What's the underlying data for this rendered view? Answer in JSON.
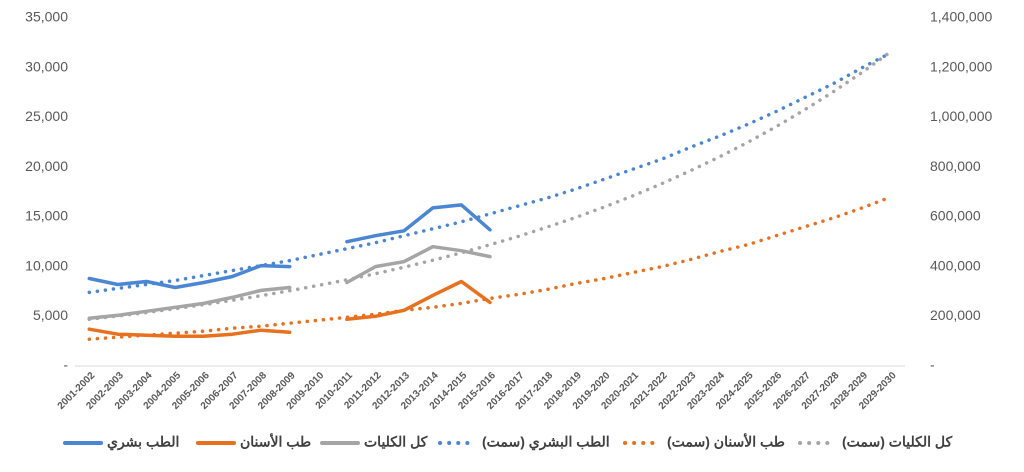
{
  "chart_data": {
    "type": "line",
    "categories": [
      "2001-2002",
      "2002-2003",
      "2003-2004",
      "2004-2005",
      "2005-2006",
      "2006-2007",
      "2007-2008",
      "2008-2009",
      "2009-2010",
      "2010-2011",
      "2011-2012",
      "2012-2013",
      "2013-2014",
      "2014-2015",
      "2015-2016",
      "2016-2017",
      "2017-2018",
      "2018-2019",
      "2019-2020",
      "2020-2021",
      "2021-2022",
      "2022-2023",
      "2023-2024",
      "2024-2025",
      "2025-2026",
      "2026-2027",
      "2027-2028",
      "2028-2029",
      "2029-2030"
    ],
    "ylim": [
      0,
      35000
    ],
    "yticks": [
      {
        "value": 0,
        "label": "-"
      },
      {
        "value": 5000,
        "label": "5,000"
      },
      {
        "value": 10000,
        "label": "10,000"
      },
      {
        "value": 15000,
        "label": "15,000"
      },
      {
        "value": 20000,
        "label": "20,000"
      },
      {
        "value": 25000,
        "label": "25,000"
      },
      {
        "value": 30000,
        "label": "30,000"
      },
      {
        "value": 35000,
        "label": "35,000"
      }
    ],
    "y2lim": [
      0,
      1400000
    ],
    "y2ticks": [
      {
        "value": 0,
        "label": "-"
      },
      {
        "value": 200000,
        "label": "200,000"
      },
      {
        "value": 400000,
        "label": "400,000"
      },
      {
        "value": 600000,
        "label": "600,000"
      },
      {
        "value": 800000,
        "label": "800,000"
      },
      {
        "value": 1000000,
        "label": "1,000,000"
      },
      {
        "value": 1200000,
        "label": "1,200,000"
      },
      {
        "value": 1400000,
        "label": "1,400,000"
      }
    ],
    "grid": false,
    "legend": "bottom",
    "series": [
      {
        "name": "الطب بشري",
        "color": "#4a86d4",
        "style": "solid",
        "values": [
          8800,
          8200,
          8500,
          7900,
          8400,
          9000,
          10100,
          10000,
          null,
          12500,
          13100,
          13600,
          15900,
          16200,
          13700,
          null,
          null,
          null,
          null,
          null,
          null,
          null,
          null,
          null,
          null,
          null,
          null,
          null,
          null
        ]
      },
      {
        "name": "طب الأسنان",
        "color": "#e8711f",
        "style": "solid",
        "values": [
          3700,
          3200,
          3100,
          3000,
          3000,
          3200,
          3600,
          3400,
          null,
          4700,
          5000,
          5600,
          7100,
          8500,
          6400,
          null,
          null,
          null,
          null,
          null,
          null,
          null,
          null,
          null,
          null,
          null,
          null,
          null,
          null
        ]
      },
      {
        "name": "كل الكليات",
        "color": "#a5a5a5",
        "style": "solid",
        "axis": "y2",
        "values": [
          192000,
          204000,
          220000,
          236000,
          252000,
          276000,
          304000,
          316000,
          null,
          336000,
          400000,
          420000,
          480000,
          464000,
          440000,
          null,
          null,
          null,
          null,
          null,
          null,
          null,
          null,
          null,
          null,
          null,
          null,
          null,
          null
        ]
      },
      {
        "name": "الطب البشري (سمت)",
        "color": "#4a86d4",
        "style": "dotted",
        "values": [
          7400,
          7800,
          8200,
          8600,
          9100,
          9600,
          10100,
          10600,
          11200,
          11800,
          12400,
          13100,
          13800,
          14500,
          15300,
          16100,
          16900,
          17800,
          18800,
          19800,
          20800,
          22000,
          23100,
          24300,
          25600,
          27000,
          28400,
          30000,
          31500
        ]
      },
      {
        "name": "طب الأسنان (سمت)",
        "color": "#e8711f",
        "style": "dotted",
        "values": [
          2700,
          2900,
          3100,
          3300,
          3500,
          3800,
          4000,
          4300,
          4600,
          4900,
          5200,
          5600,
          5900,
          6300,
          6800,
          7200,
          7700,
          8300,
          8800,
          9400,
          10000,
          10700,
          11500,
          12200,
          13100,
          14000,
          14900,
          15900,
          17000
        ]
      },
      {
        "name": "كل الكليات (سمت)",
        "color": "#a5a5a5",
        "style": "dotted",
        "axis": "y2",
        "values": [
          188000,
          201200,
          215400,
          230600,
          246900,
          264300,
          282900,
          302800,
          324100,
          346900,
          371400,
          397500,
          425500,
          455500,
          487600,
          521900,
          558700,
          598000,
          640200,
          685200,
          733500,
          785200,
          840500,
          899700,
          963000,
          1030900,
          1103500,
          1181200,
          1264400
        ]
      }
    ]
  }
}
